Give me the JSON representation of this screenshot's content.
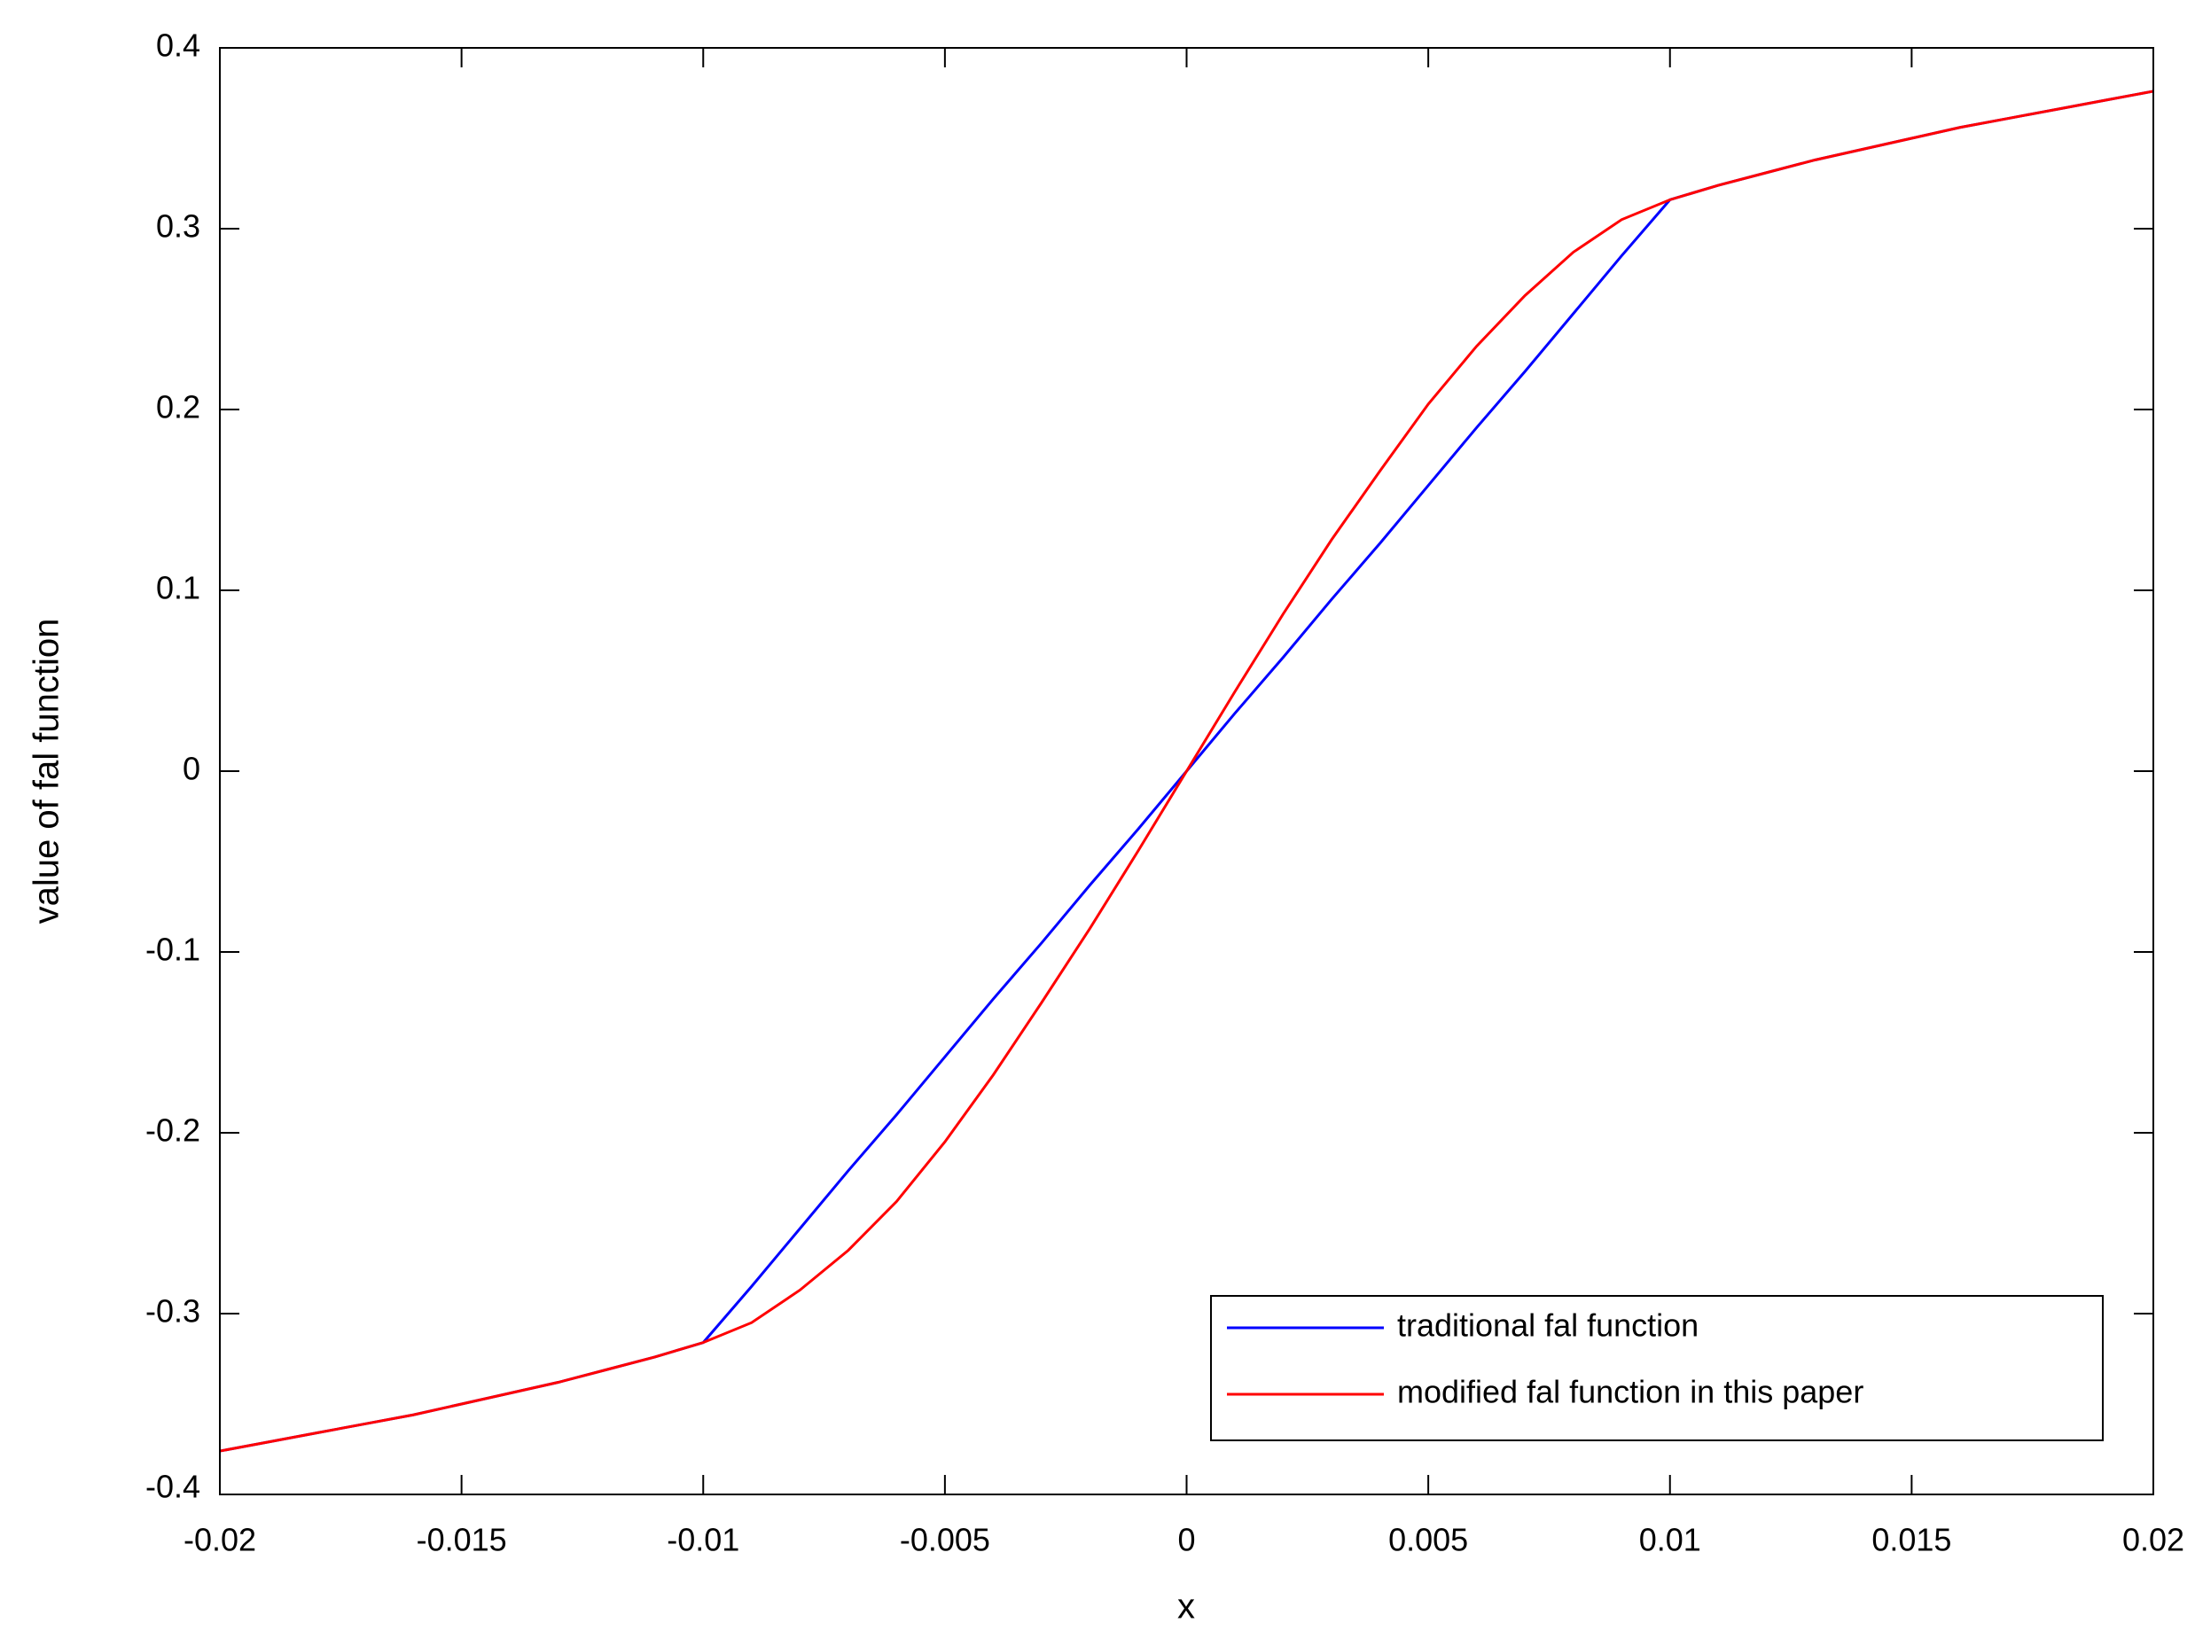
{
  "chart_data": {
    "type": "line",
    "x_label": "x",
    "y_label": "value of fal function",
    "x": [
      -0.02,
      -0.019,
      -0.018,
      -0.017,
      -0.016,
      -0.015,
      -0.014,
      -0.013,
      -0.012,
      -0.011,
      -0.01,
      -0.009,
      -0.008,
      -0.007,
      -0.006,
      -0.005,
      -0.004,
      -0.003,
      -0.002,
      -0.001,
      0,
      0.001,
      0.002,
      0.003,
      0.004,
      0.005,
      0.006,
      0.007,
      0.008,
      0.009,
      0.01,
      0.011,
      0.012,
      0.013,
      0.014,
      0.015,
      0.016,
      0.017,
      0.018,
      0.019,
      0.02
    ],
    "series": [
      {
        "name": "traditional fal function",
        "color": "#0000ff",
        "values": [
          -0.376,
          -0.371,
          -0.366,
          -0.361,
          -0.356,
          -0.35,
          -0.344,
          -0.338,
          -0.331,
          -0.324,
          -0.316,
          -0.285,
          -0.253,
          -0.221,
          -0.19,
          -0.158,
          -0.126,
          -0.095,
          -0.063,
          -0.032,
          0,
          0.032,
          0.063,
          0.095,
          0.126,
          0.158,
          0.19,
          0.221,
          0.253,
          0.285,
          0.316,
          0.324,
          0.331,
          0.338,
          0.344,
          0.35,
          0.356,
          0.361,
          0.366,
          0.371,
          0.376
        ]
      },
      {
        "name": "modified fal function in this paper",
        "color": "#ff0000",
        "values": [
          -0.376,
          -0.371,
          -0.366,
          -0.361,
          -0.356,
          -0.35,
          -0.344,
          -0.338,
          -0.331,
          -0.324,
          -0.316,
          -0.305,
          -0.287,
          -0.265,
          -0.238,
          -0.205,
          -0.168,
          -0.128,
          -0.087,
          -0.044,
          0,
          0.044,
          0.087,
          0.128,
          0.166,
          0.203,
          0.235,
          0.263,
          0.287,
          0.305,
          0.316,
          0.324,
          0.331,
          0.338,
          0.344,
          0.35,
          0.356,
          0.361,
          0.366,
          0.371,
          0.376
        ]
      }
    ],
    "xlim": [
      -0.02,
      0.02
    ],
    "xticks": [
      -0.02,
      -0.015,
      -0.01,
      -0.005,
      0,
      0.005,
      0.01,
      0.015,
      0.02
    ],
    "ylim": [
      -0.4,
      0.4
    ],
    "yticks": [
      -0.4,
      -0.3,
      -0.2,
      -0.1,
      0,
      0.1,
      0.2,
      0.3,
      0.4
    ],
    "grid": false,
    "legend": "lower right"
  }
}
